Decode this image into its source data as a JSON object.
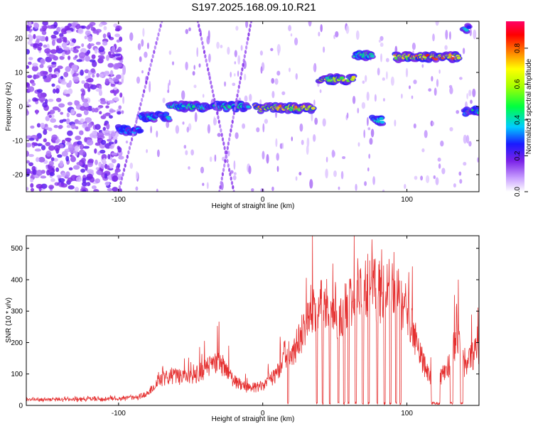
{
  "title": "S197.2025.168.09.10.R21",
  "colors": {
    "snr_line": "#e53030",
    "axis": "#000000"
  },
  "chart_data": [
    {
      "type": "heatmap",
      "xlabel": "Height of straight line (km)",
      "ylabel": "Frequency (Hz)",
      "xlim": [
        -164,
        150
      ],
      "ylim": [
        -25,
        25
      ],
      "xticks": [
        -100,
        0,
        100
      ],
      "yticks": [
        -20,
        -10,
        0,
        10,
        20
      ],
      "colorbar": {
        "label": "Normalized spectral amplitude",
        "range": [
          0,
          0.95
        ],
        "ticks": [
          "0.0",
          "0.2",
          "0.4",
          "0.6",
          "0.8"
        ],
        "tick_values": [
          0.0,
          0.2,
          0.4,
          0.6,
          0.8
        ],
        "colormap": "rainbow"
      },
      "segments": [
        {
          "x": [
            -100,
            -85
          ],
          "freq": -7,
          "amplitude": 0.4
        },
        {
          "x": [
            -85,
            -65
          ],
          "freq": -3,
          "amplitude": 0.45
        },
        {
          "x": [
            -65,
            -10
          ],
          "freq": 0,
          "amplitude": 0.5
        },
        {
          "x": [
            -5,
            35
          ],
          "freq": -0.5,
          "amplitude": 0.85
        },
        {
          "x": [
            39,
            63
          ],
          "freq": 8,
          "amplitude": 0.75
        },
        {
          "x": [
            64,
            76
          ],
          "freq": 15,
          "amplitude": 0.55
        },
        {
          "x": [
            76,
            83
          ],
          "freq": -4,
          "amplitude": 0.45
        },
        {
          "x": [
            92,
            136
          ],
          "freq": 14.5,
          "amplitude": 0.9
        },
        {
          "x": [
            140,
            150
          ],
          "freq": -1.5,
          "amplitude": 0.5
        },
        {
          "x": [
            139,
            143
          ],
          "freq": 23,
          "amplitude": 0.45
        }
      ]
    },
    {
      "type": "line",
      "xlabel": "Height of straight line (km)",
      "ylabel": "SNR (10 * v/v)",
      "xlim": [
        -164,
        150
      ],
      "ylim": [
        0,
        540
      ],
      "xticks": [
        -100,
        0,
        100
      ],
      "yticks": [
        0,
        100,
        200,
        300,
        400,
        500
      ],
      "series": [
        {
          "x": [
            -164,
            -140,
            -120,
            -100,
            -85,
            -80,
            -70,
            -60,
            -50,
            -40,
            -30,
            -20,
            -10,
            0,
            10,
            15,
            18,
            20,
            30,
            35,
            40,
            45,
            50,
            55,
            60,
            65,
            70,
            75,
            80,
            85,
            90,
            95,
            100,
            105,
            110,
            115,
            120,
            125,
            130,
            135,
            140,
            145,
            150
          ],
          "y": [
            20,
            20,
            22,
            25,
            30,
            50,
            110,
            120,
            110,
            150,
            180,
            100,
            70,
            80,
            130,
            210,
            230,
            200,
            330,
            420,
            430,
            380,
            400,
            350,
            440,
            480,
            470,
            480,
            460,
            470,
            480,
            450,
            380,
            300,
            200,
            120,
            80,
            130,
            170,
            300,
            150,
            200,
            230
          ]
        }
      ]
    }
  ]
}
